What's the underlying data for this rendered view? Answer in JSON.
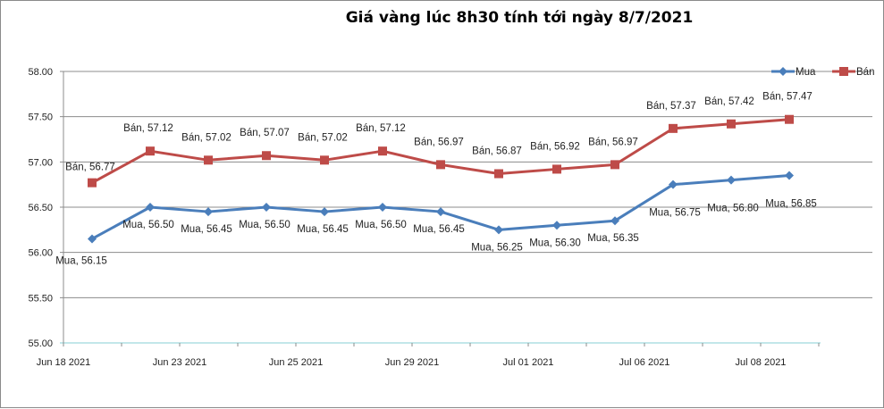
{
  "chart_data": {
    "type": "line",
    "title": "Giá vàng lúc 8h30 tính tới ngày 8/7/2021",
    "xlabel": "",
    "ylabel": "",
    "ylim": [
      55.0,
      58.0
    ],
    "yticks": [
      "55.00",
      "55.50",
      "56.00",
      "56.50",
      "57.00",
      "57.50",
      "58.00"
    ],
    "xtick_labels": [
      "Jun 18 2021",
      "Jun 23 2021",
      "Jun 25 2021",
      "Jun 29 2021",
      "Jul 01 2021",
      "Jul 06 2021",
      "Jul 08 2021"
    ],
    "grid": true,
    "legend_position": "top-right",
    "series": [
      {
        "name": "Mua",
        "color": "#4a7ebb",
        "marker": "diamond",
        "values": [
          56.15,
          56.5,
          56.45,
          56.5,
          56.45,
          56.5,
          56.45,
          56.25,
          56.3,
          56.35,
          56.75,
          56.8,
          56.85
        ]
      },
      {
        "name": "Bán",
        "color": "#be4b48",
        "marker": "square",
        "values": [
          56.77,
          57.12,
          57.02,
          57.07,
          57.02,
          57.12,
          56.97,
          56.87,
          56.92,
          56.97,
          57.37,
          57.42,
          57.47
        ]
      }
    ]
  }
}
